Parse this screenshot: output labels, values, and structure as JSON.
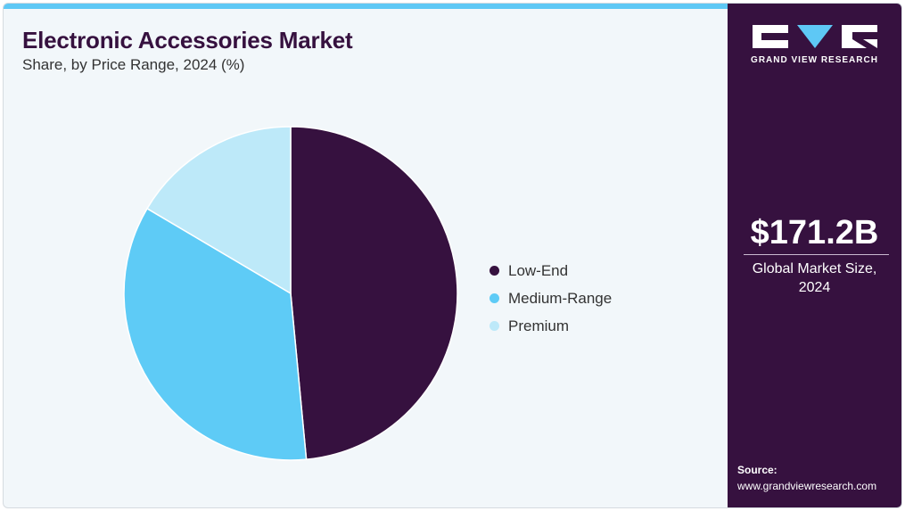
{
  "header": {
    "title": "Electronic Accessories Market",
    "subtitle": "Share, by Price Range, 2024 (%)"
  },
  "colors": {
    "accent_bar": "#5ec8f5",
    "panel_background": "#36113f",
    "card_background": "#f2f7fa"
  },
  "chart_data": {
    "type": "pie",
    "categories": [
      "Low-End",
      "Medium-Range",
      "Premium"
    ],
    "values": [
      48.5,
      35.0,
      16.5
    ],
    "colors": [
      "#36113f",
      "#5ecbf6",
      "#bde9f9"
    ],
    "legend_placement": "right",
    "grid": false
  },
  "sidebar": {
    "brand": "GRAND VIEW RESEARCH",
    "logo_icon": "gvr-logo-icon",
    "market_value": "$171.2B",
    "market_label_line1": "Global Market Size,",
    "market_label_line2": "2024",
    "source_label": "Source:",
    "source_url": "www.grandviewresearch.com"
  }
}
